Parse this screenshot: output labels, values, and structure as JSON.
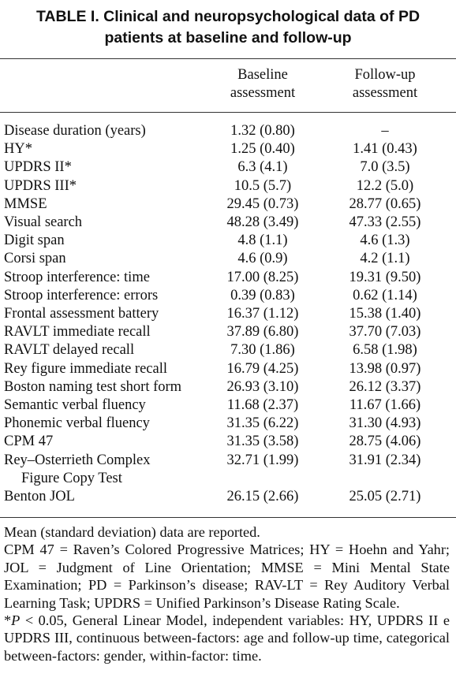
{
  "table": {
    "title_line1": "TABLE I. Clinical and neuropsychological data of PD",
    "title_line2": "patients at baseline and follow-up",
    "col_headers": {
      "baseline_line1": "Baseline",
      "baseline_line2": "assessment",
      "followup_line1": "Follow-up",
      "followup_line2": "assessment"
    },
    "rows": [
      {
        "label": "Disease duration (years)",
        "baseline": "1.32 (0.80)",
        "followup": "–"
      },
      {
        "label": "HY*",
        "baseline": "1.25 (0.40)",
        "followup": "1.41 (0.43)"
      },
      {
        "label": "UPDRS II*",
        "baseline": "6.3 (4.1)",
        "followup": "7.0 (3.5)"
      },
      {
        "label": "UPDRS III*",
        "baseline": "10.5 (5.7)",
        "followup": "12.2 (5.0)"
      },
      {
        "label": "MMSE",
        "baseline": "29.45 (0.73)",
        "followup": "28.77 (0.65)"
      },
      {
        "label": "Visual search",
        "baseline": "48.28 (3.49)",
        "followup": "47.33 (2.55)"
      },
      {
        "label": "Digit span",
        "baseline": "4.8 (1.1)",
        "followup": "4.6 (1.3)"
      },
      {
        "label": "Corsi span",
        "baseline": "4.6 (0.9)",
        "followup": "4.2 (1.1)"
      },
      {
        "label": "Stroop interference: time",
        "baseline": "17.00 (8.25)",
        "followup": "19.31 (9.50)"
      },
      {
        "label": "Stroop interference: errors",
        "baseline": "0.39 (0.83)",
        "followup": "0.62 (1.14)"
      },
      {
        "label": "Frontal assessment battery",
        "baseline": "16.37 (1.12)",
        "followup": "15.38 (1.40)"
      },
      {
        "label": "RAVLT immediate recall",
        "baseline": "37.89 (6.80)",
        "followup": "37.70 (7.03)"
      },
      {
        "label": "RAVLT delayed recall",
        "baseline": "7.30 (1.86)",
        "followup": "6.58 (1.98)"
      },
      {
        "label": "Rey figure immediate recall",
        "baseline": "16.79 (4.25)",
        "followup": "13.98 (0.97)"
      },
      {
        "label": "Boston naming test short form",
        "baseline": "26.93 (3.10)",
        "followup": "26.12 (3.37)"
      },
      {
        "label": "Semantic verbal fluency",
        "baseline": "11.68 (2.37)",
        "followup": "11.67 (1.66)"
      },
      {
        "label": "Phonemic verbal fluency",
        "baseline": "31.35 (6.22)",
        "followup": "31.30 (4.93)"
      },
      {
        "label": "CPM 47",
        "baseline": "31.35 (3.58)",
        "followup": "28.75 (4.06)"
      },
      {
        "label": "Rey–Osterrieth Complex",
        "label_cont": "Figure Copy Test",
        "baseline": "32.71 (1.99)",
        "followup": "31.91 (2.34)"
      },
      {
        "label": "Benton JOL",
        "baseline": "26.15 (2.66)",
        "followup": "25.05 (2.71)"
      }
    ],
    "notes": {
      "line1": "Mean (standard deviation) data are reported.",
      "abbreviations": "CPM 47 = Raven’s Colored Progressive Matrices; HY = Hoehn and Yahr; JOL = Judgment of Line Orientation; MMSE = Mini Mental State Examination; PD = Parkinson’s disease; RAV-LT = Rey Auditory Verbal Learning Task; UPDRS = Unified Parkinson’s Disease Rating Scale.",
      "footnote_prefix": "*",
      "footnote_p": "P",
      "footnote_text": " < 0.05, General Linear Model, independent variables: HY, UPDRS II e UPDRS III, continuous between-factors: age and follow-up time, categorical between-factors: gender, within-factor: time."
    }
  }
}
